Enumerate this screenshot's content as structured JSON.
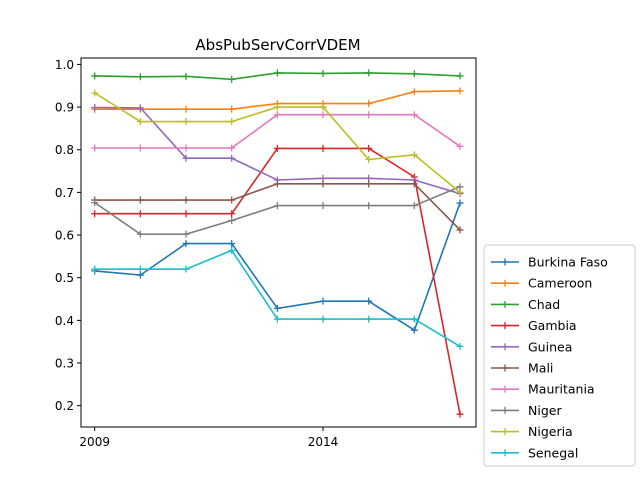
{
  "chart_data": {
    "type": "line",
    "title": "AbsPubServCorrVDEM",
    "xlabel": "",
    "ylabel": "",
    "x": [
      2009,
      2010,
      2011,
      2012,
      2013,
      2014,
      2015,
      2016,
      2017
    ],
    "xticks": [
      2009,
      2014
    ],
    "xlim": [
      2008.7,
      2017.35
    ],
    "ylim": [
      0.15,
      1.015
    ],
    "yticks": [
      "0.2",
      "0.3",
      "0.4",
      "0.5",
      "0.6",
      "0.7",
      "0.8",
      "0.9",
      "1.0"
    ],
    "grid": false,
    "legend": "bottom-right",
    "series": [
      {
        "name": "Burkina Faso",
        "color": "#1f77b4",
        "values": [
          0.516,
          0.506,
          0.58,
          0.58,
          0.428,
          0.445,
          0.445,
          0.377,
          0.675
        ]
      },
      {
        "name": "Cameroon",
        "color": "#ff7f0e",
        "values": [
          0.895,
          0.895,
          0.895,
          0.895,
          0.908,
          0.908,
          0.908,
          0.936,
          0.938
        ]
      },
      {
        "name": "Chad",
        "color": "#2ca02c",
        "values": [
          0.973,
          0.971,
          0.972,
          0.965,
          0.98,
          0.979,
          0.98,
          0.978,
          0.973
        ]
      },
      {
        "name": "Gambia",
        "color": "#d62728",
        "values": [
          0.65,
          0.65,
          0.65,
          0.65,
          0.803,
          0.803,
          0.803,
          0.736,
          0.18
        ]
      },
      {
        "name": "Guinea",
        "color": "#9467bd",
        "values": [
          0.899,
          0.898,
          0.78,
          0.78,
          0.729,
          0.733,
          0.733,
          0.729,
          0.697
        ]
      },
      {
        "name": "Mali",
        "color": "#8c564b",
        "values": [
          0.682,
          0.682,
          0.682,
          0.682,
          0.72,
          0.72,
          0.72,
          0.72,
          0.612
        ]
      },
      {
        "name": "Mauritania",
        "color": "#e377c2",
        "values": [
          0.804,
          0.804,
          0.804,
          0.804,
          0.882,
          0.882,
          0.882,
          0.882,
          0.808
        ]
      },
      {
        "name": "Niger",
        "color": "#7f7f7f",
        "values": [
          0.676,
          0.602,
          0.602,
          0.634,
          0.669,
          0.669,
          0.669,
          0.669,
          0.713
        ]
      },
      {
        "name": "Nigeria",
        "color": "#bcbd22",
        "values": [
          0.933,
          0.866,
          0.866,
          0.866,
          0.9,
          0.9,
          0.777,
          0.788,
          0.7
        ]
      },
      {
        "name": "Senegal",
        "color": "#17becf",
        "values": [
          0.52,
          0.52,
          0.52,
          0.564,
          0.403,
          0.403,
          0.403,
          0.403,
          0.339
        ]
      }
    ]
  }
}
